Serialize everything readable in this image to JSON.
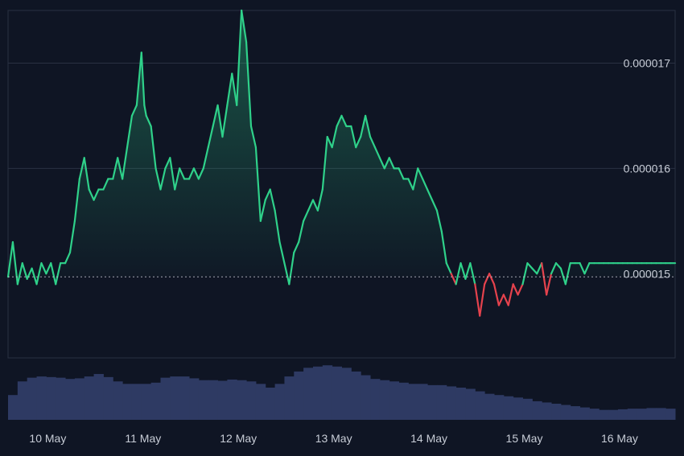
{
  "chart_data": {
    "type": "area",
    "baseline": 1.497e-05,
    "ylim": [
      1.42e-05,
      1.75e-05
    ],
    "y_ticks": [
      {
        "value": 1.7e-05,
        "label": "0.000017"
      },
      {
        "value": 1.6e-05,
        "label": "0.000016"
      },
      {
        "value": 1.5e-05,
        "label": "0.000015"
      }
    ],
    "x_ticks": [
      "10 May",
      "11 May",
      "12 May",
      "13 May",
      "14 May",
      "15 May",
      "16 May"
    ],
    "xlim": [
      9.6,
      16.6
    ],
    "x_tick_values": [
      10,
      11,
      12,
      13,
      14,
      15,
      16
    ],
    "colors": {
      "background": "#0f1524",
      "grid": "#2a3142",
      "up": "#2fd18a",
      "down": "#e5424d",
      "baseline": "#c7ccd6",
      "volume": "#2e3a63"
    },
    "series": [
      {
        "x": [
          9.6,
          9.65,
          9.7,
          9.75,
          9.8,
          9.85,
          9.9,
          9.95,
          10.0,
          10.05,
          10.1,
          10.15,
          10.2,
          10.25,
          10.3,
          10.35,
          10.4,
          10.45,
          10.5,
          10.55,
          10.6,
          10.65,
          10.7,
          10.75,
          10.8,
          10.85,
          10.9,
          10.95,
          11.0,
          11.03,
          11.05,
          11.1,
          11.15,
          11.2,
          11.25,
          11.3,
          11.35,
          11.4,
          11.45,
          11.5,
          11.55,
          11.6,
          11.65,
          11.7,
          11.75,
          11.8,
          11.85,
          11.9,
          11.95,
          12.0,
          12.05,
          12.1,
          12.15,
          12.2,
          12.25,
          12.3,
          12.35,
          12.4,
          12.45,
          12.5,
          12.55,
          12.6,
          12.65,
          12.7,
          12.75,
          12.8,
          12.85,
          12.9,
          12.95,
          13.0,
          13.05,
          13.1,
          13.15,
          13.2,
          13.25,
          13.3,
          13.35,
          13.4,
          13.45,
          13.5,
          13.55,
          13.6,
          13.65,
          13.7,
          13.75,
          13.8,
          13.85,
          13.9,
          13.95,
          14.0,
          14.05,
          14.1,
          14.15,
          14.2,
          14.25,
          14.3,
          14.35,
          14.4,
          14.45,
          14.5,
          14.55,
          14.6,
          14.65,
          14.7,
          14.75,
          14.8,
          14.85,
          14.9,
          14.95,
          15.0,
          15.05,
          15.1,
          15.15,
          15.2,
          15.25,
          15.3,
          15.35,
          15.4,
          15.45,
          15.5,
          15.55,
          15.6,
          15.65,
          15.7,
          15.75,
          15.8,
          15.85,
          15.9,
          15.95,
          16.0,
          16.05,
          16.1,
          16.15,
          16.2,
          16.25,
          16.3,
          16.35,
          16.4,
          16.45,
          16.5,
          16.55,
          16.6
        ],
        "values": [
          1.497e-05,
          1.53e-05,
          1.49e-05,
          1.51e-05,
          1.495e-05,
          1.505e-05,
          1.49e-05,
          1.51e-05,
          1.5e-05,
          1.51e-05,
          1.49e-05,
          1.51e-05,
          1.51e-05,
          1.52e-05,
          1.55e-05,
          1.59e-05,
          1.61e-05,
          1.58e-05,
          1.57e-05,
          1.58e-05,
          1.58e-05,
          1.59e-05,
          1.59e-05,
          1.61e-05,
          1.59e-05,
          1.62e-05,
          1.65e-05,
          1.66e-05,
          1.71e-05,
          1.66e-05,
          1.65e-05,
          1.64e-05,
          1.6e-05,
          1.58e-05,
          1.6e-05,
          1.61e-05,
          1.58e-05,
          1.6e-05,
          1.59e-05,
          1.59e-05,
          1.6e-05,
          1.59e-05,
          1.6e-05,
          1.62e-05,
          1.64e-05,
          1.66e-05,
          1.63e-05,
          1.66e-05,
          1.69e-05,
          1.66e-05,
          1.75e-05,
          1.72e-05,
          1.64e-05,
          1.62e-05,
          1.55e-05,
          1.57e-05,
          1.58e-05,
          1.56e-05,
          1.53e-05,
          1.51e-05,
          1.49e-05,
          1.52e-05,
          1.53e-05,
          1.55e-05,
          1.56e-05,
          1.57e-05,
          1.56e-05,
          1.58e-05,
          1.63e-05,
          1.62e-05,
          1.64e-05,
          1.65e-05,
          1.64e-05,
          1.64e-05,
          1.62e-05,
          1.63e-05,
          1.65e-05,
          1.63e-05,
          1.62e-05,
          1.61e-05,
          1.6e-05,
          1.61e-05,
          1.6e-05,
          1.6e-05,
          1.59e-05,
          1.59e-05,
          1.58e-05,
          1.6e-05,
          1.59e-05,
          1.58e-05,
          1.57e-05,
          1.56e-05,
          1.54e-05,
          1.51e-05,
          1.5e-05,
          1.49e-05,
          1.51e-05,
          1.495e-05,
          1.51e-05,
          1.49e-05,
          1.46e-05,
          1.49e-05,
          1.5e-05,
          1.49e-05,
          1.47e-05,
          1.48e-05,
          1.47e-05,
          1.49e-05,
          1.48e-05,
          1.49e-05,
          1.51e-05,
          1.505e-05,
          1.5e-05,
          1.51e-05,
          1.48e-05,
          1.5e-05,
          1.51e-05,
          1.505e-05,
          1.49e-05,
          1.51e-05,
          1.51e-05,
          1.51e-05,
          1.5e-05,
          1.51e-05,
          1.51e-05,
          1.51e-05,
          1.51e-05,
          1.51e-05,
          1.51e-05,
          1.51e-05,
          1.51e-05,
          1.51e-05,
          1.51e-05,
          1.51e-05,
          1.51e-05,
          1.51e-05,
          1.51e-05,
          1.51e-05,
          1.51e-05,
          1.51e-05,
          1.51e-05,
          1.51e-05
        ]
      },
      {
        "x": [
          9.6,
          9.7,
          9.8,
          9.9,
          10.0,
          10.1,
          10.2,
          10.3,
          10.4,
          10.5,
          10.6,
          10.7,
          10.8,
          10.9,
          11.0,
          11.1,
          11.2,
          11.3,
          11.4,
          11.5,
          11.6,
          11.7,
          11.8,
          11.9,
          12.0,
          12.1,
          12.2,
          12.3,
          12.4,
          12.5,
          12.6,
          12.7,
          12.8,
          12.9,
          13.0,
          13.1,
          13.2,
          13.3,
          13.4,
          13.5,
          13.6,
          13.7,
          13.8,
          13.9,
          14.0,
          14.1,
          14.2,
          14.3,
          14.4,
          14.5,
          14.6,
          14.7,
          14.8,
          14.9,
          15.0,
          15.1,
          15.2,
          15.3,
          15.4,
          15.5,
          15.6,
          15.7,
          15.8,
          15.9,
          16.0,
          16.1,
          16.2,
          16.3,
          16.4,
          16.5,
          16.6
        ],
        "values": [
          0.4,
          0.62,
          0.68,
          0.7,
          0.69,
          0.68,
          0.66,
          0.67,
          0.7,
          0.74,
          0.69,
          0.62,
          0.58,
          0.58,
          0.58,
          0.6,
          0.68,
          0.7,
          0.7,
          0.67,
          0.64,
          0.64,
          0.63,
          0.65,
          0.64,
          0.62,
          0.58,
          0.52,
          0.58,
          0.7,
          0.78,
          0.84,
          0.86,
          0.88,
          0.86,
          0.84,
          0.78,
          0.72,
          0.66,
          0.64,
          0.62,
          0.6,
          0.58,
          0.58,
          0.56,
          0.56,
          0.54,
          0.52,
          0.5,
          0.46,
          0.42,
          0.4,
          0.38,
          0.36,
          0.34,
          0.3,
          0.28,
          0.26,
          0.24,
          0.22,
          0.2,
          0.18,
          0.16,
          0.16,
          0.17,
          0.18,
          0.18,
          0.19,
          0.19,
          0.18,
          0.17
        ]
      }
    ]
  }
}
